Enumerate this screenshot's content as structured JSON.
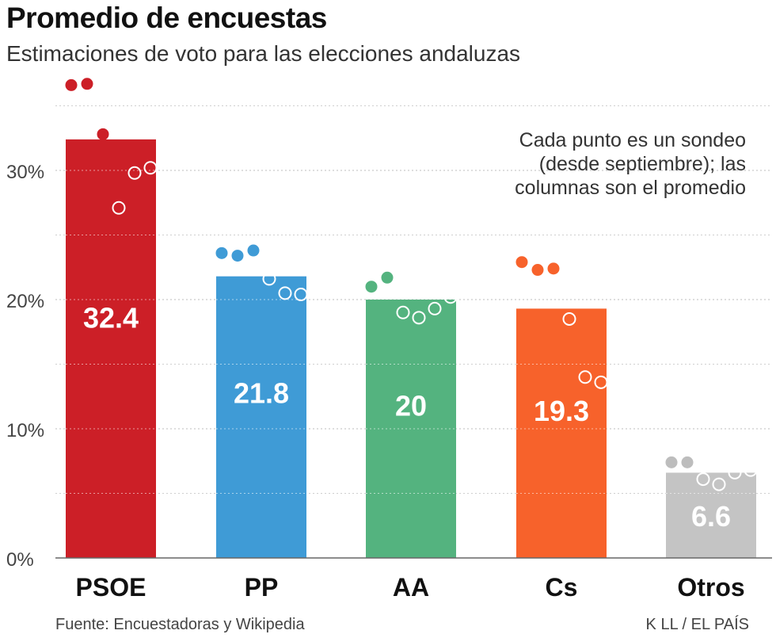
{
  "header": {
    "title": "Promedio de encuestas",
    "subtitle": "Estimaciones de voto para las elecciones andaluzas"
  },
  "note": {
    "lines": [
      "Cada punto es un sondeo",
      "(desde septiembre); las",
      "columnas son el promedio"
    ]
  },
  "footer": {
    "source": "Fuente: Encuestadoras y Wikipedia",
    "credit": "K LL / EL PAÍS"
  },
  "chart_data": {
    "type": "bar",
    "title": "Promedio de encuestas",
    "subtitle": "Estimaciones de voto para las elecciones andaluzas",
    "xlabel": "",
    "ylabel": "",
    "ylim": [
      0,
      35
    ],
    "yticks": [
      0,
      10,
      20,
      30
    ],
    "ytick_labels": [
      "0%",
      "10%",
      "20%",
      "30%"
    ],
    "grid": true,
    "categories": [
      "PSOE",
      "PP",
      "AA",
      "Cs",
      "Otros"
    ],
    "values": [
      32.4,
      21.8,
      20,
      19.3,
      6.6
    ],
    "value_labels": [
      "32.4",
      "21.8",
      "20",
      "19.3",
      "6.6"
    ],
    "colors": [
      "#cc1f27",
      "#3f9bd6",
      "#54b37f",
      "#f7622b",
      "#c4c4c4"
    ],
    "polls": [
      {
        "filled": [
          36.6,
          36.7,
          32.8
        ],
        "hollow": [
          27.1,
          29.8,
          30.2
        ]
      },
      {
        "filled": [
          23.6,
          23.4,
          23.8
        ],
        "hollow": [
          21.6,
          20.5,
          20.4
        ]
      },
      {
        "filled": [
          21.0,
          21.7
        ],
        "hollow": [
          19.0,
          18.6,
          19.3,
          20.2
        ]
      },
      {
        "filled": [
          22.9,
          22.3,
          22.4
        ],
        "hollow": [
          18.5,
          14.0,
          13.6
        ]
      },
      {
        "filled": [
          7.4,
          7.4
        ],
        "hollow": [
          6.1,
          5.7,
          6.6,
          6.8
        ]
      }
    ]
  }
}
